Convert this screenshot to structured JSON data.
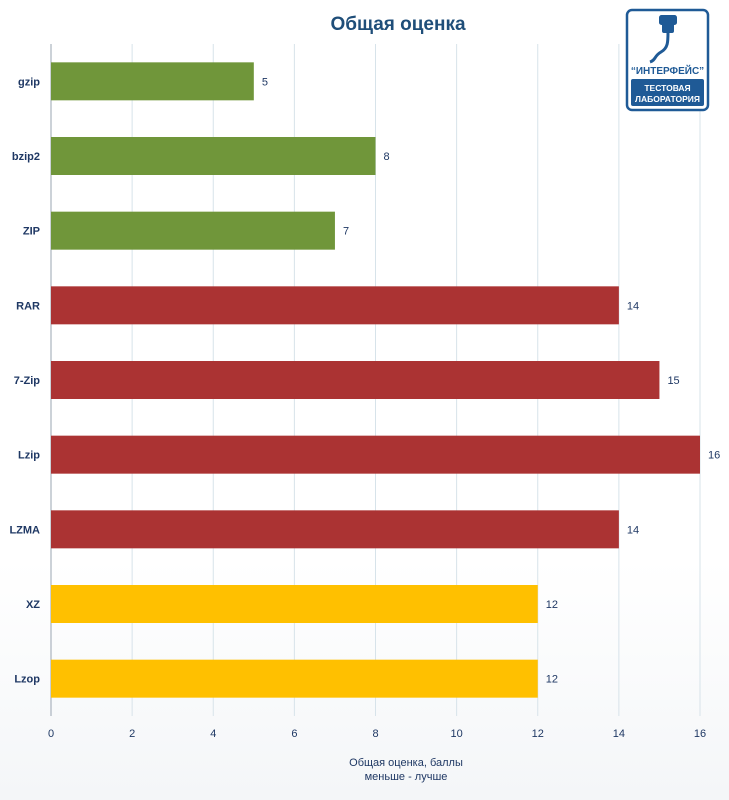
{
  "chart_data": {
    "type": "bar",
    "orientation": "horizontal",
    "title": "Общая оценка",
    "categories": [
      "gzip",
      "bzip2",
      "ZIP",
      "RAR",
      "7-Zip",
      "Lzip",
      "LZMA",
      "XZ",
      "Lzop"
    ],
    "values": [
      5,
      8,
      7,
      14,
      15,
      16,
      14,
      12,
      12
    ],
    "bar_colors": [
      "#70963a",
      "#70963a",
      "#70963a",
      "#ab3333",
      "#ab3333",
      "#ab3333",
      "#ab3333",
      "#ffc000",
      "#ffc000"
    ],
    "xlabel": [
      "Общая оценка, баллы",
      "меньше - лучше"
    ],
    "ylabel": "",
    "xlim": [
      0,
      16
    ],
    "xticks": [
      0,
      2,
      4,
      6,
      8,
      10,
      12,
      14,
      16
    ],
    "grid": "vertical",
    "data_labels": true,
    "legend": "none"
  },
  "logo": {
    "name": "“ИНТЕРФЕЙС”",
    "subtitle_line1": "ТЕСТОВАЯ",
    "subtitle_line2": "ЛАБОРАТОРИЯ",
    "color": "#1f5a96"
  }
}
